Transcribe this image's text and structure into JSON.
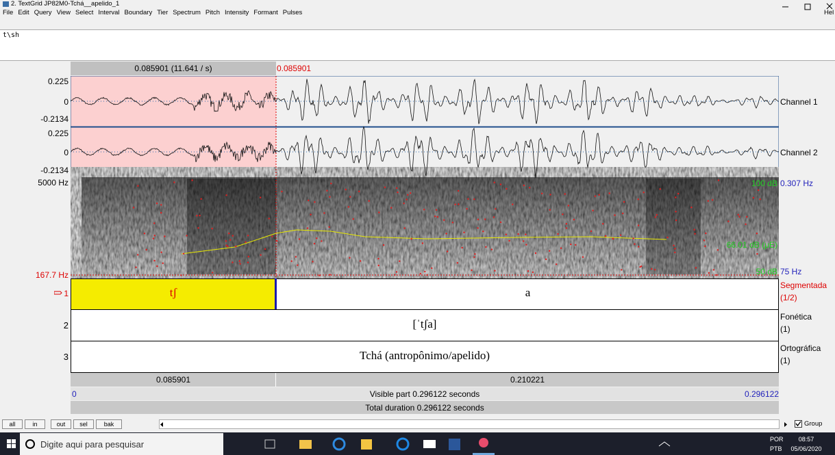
{
  "window": {
    "title": "2. TextGrid JP82M0-Tchá__apelido_1"
  },
  "menu": [
    "File",
    "Edit",
    "Query",
    "View",
    "Select",
    "Interval",
    "Boundary",
    "Tier",
    "Spectrum",
    "Pitch",
    "Intensity",
    "Formant",
    "Pulses"
  ],
  "menu_partial": "Hel",
  "text_field": "t\\sh",
  "selection": {
    "duration_label": "0.085901 (11.641 / s)",
    "cursor": "0.085901"
  },
  "channels": [
    {
      "name": "Channel 1",
      "ymax": "0.225",
      "zero": "0",
      "ymin": "-0.2134"
    },
    {
      "name": "Channel 2",
      "ymax": "0.225",
      "zero": "0",
      "ymin": "-0.2134"
    }
  ],
  "spectrogram": {
    "fmax": "5000 Hz",
    "fmin": "167.7 Hz",
    "db_max": "100 dB",
    "pitch_max": "0.307 Hz",
    "db_mid": "66.01 dB (μE)",
    "db_min": "50 dB",
    "pitch_min": "75 Hz"
  },
  "tiers": [
    {
      "number": "1",
      "name": "Segmentada",
      "count": "(1/2)",
      "intervals": [
        "tʃ",
        "a"
      ]
    },
    {
      "number": "2",
      "name": "Fonética",
      "count": "(1)",
      "intervals": [
        "[ˈtʃa]"
      ]
    },
    {
      "number": "3",
      "name": "Ortográfica",
      "count": "(1)",
      "intervals": [
        "Tchá (antropônimo/apelido)"
      ]
    }
  ],
  "durations": [
    "0.085901",
    "0.210221"
  ],
  "visible": {
    "start": "0",
    "label": "Visible part 0.296122 seconds",
    "end": "0.296122"
  },
  "total": "Total duration 0.296122 seconds",
  "buttons": [
    "all",
    "in",
    "out",
    "sel",
    "bak"
  ],
  "group_label": "Group",
  "taskbar": {
    "search": "Digite aqui para pesquisar",
    "lang": [
      "POR",
      "PTB"
    ],
    "time": "08:57",
    "date": "05/06/2020"
  }
}
